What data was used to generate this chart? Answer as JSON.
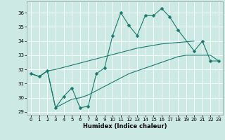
{
  "xlabel": "Humidex (Indice chaleur)",
  "ylabel": "",
  "xlim": [
    -0.5,
    23.5
  ],
  "ylim": [
    28.8,
    36.8
  ],
  "yticks": [
    29,
    30,
    31,
    32,
    33,
    34,
    35,
    36
  ],
  "xticks": [
    0,
    1,
    2,
    3,
    4,
    5,
    6,
    7,
    8,
    9,
    10,
    11,
    12,
    13,
    14,
    15,
    16,
    17,
    18,
    19,
    20,
    21,
    22,
    23
  ],
  "bg_color": "#cce9e4",
  "grid_color": "#ffffff",
  "line_color": "#1a7a6e",
  "line1_x": [
    0,
    1,
    2,
    3,
    4,
    5,
    6,
    7,
    8,
    9,
    10,
    11,
    12,
    13,
    14,
    15,
    16,
    17,
    18,
    20,
    21,
    22,
    23
  ],
  "line1_y": [
    31.7,
    31.5,
    31.9,
    29.3,
    30.1,
    30.7,
    29.3,
    29.4,
    31.7,
    32.1,
    34.4,
    36.0,
    35.1,
    34.4,
    35.8,
    35.8,
    36.3,
    35.7,
    34.8,
    33.3,
    34.0,
    32.6,
    32.6
  ],
  "line2_x": [
    0,
    1,
    2,
    3,
    4,
    5,
    6,
    7,
    8,
    9,
    10,
    11,
    12,
    13,
    14,
    15,
    16,
    17,
    18,
    19,
    20,
    21,
    22,
    23
  ],
  "line2_y": [
    31.7,
    31.5,
    31.9,
    32.0,
    32.15,
    32.3,
    32.45,
    32.6,
    32.75,
    32.9,
    33.05,
    33.2,
    33.35,
    33.5,
    33.6,
    33.7,
    33.8,
    33.85,
    33.9,
    33.95,
    34.0,
    null,
    null,
    null
  ],
  "line3_x": [
    0,
    1,
    2,
    3,
    4,
    5,
    6,
    7,
    8,
    9,
    10,
    11,
    12,
    13,
    14,
    15,
    16,
    17,
    18,
    19,
    20,
    21,
    22,
    23
  ],
  "line3_y": [
    31.7,
    31.5,
    31.9,
    29.3,
    29.6,
    29.9,
    30.0,
    30.2,
    30.5,
    30.8,
    31.1,
    31.4,
    31.7,
    31.9,
    32.1,
    32.3,
    32.5,
    32.7,
    32.9,
    33.0,
    33.0,
    33.0,
    33.0,
    32.6
  ],
  "marker": "D",
  "markersize": 2.5
}
